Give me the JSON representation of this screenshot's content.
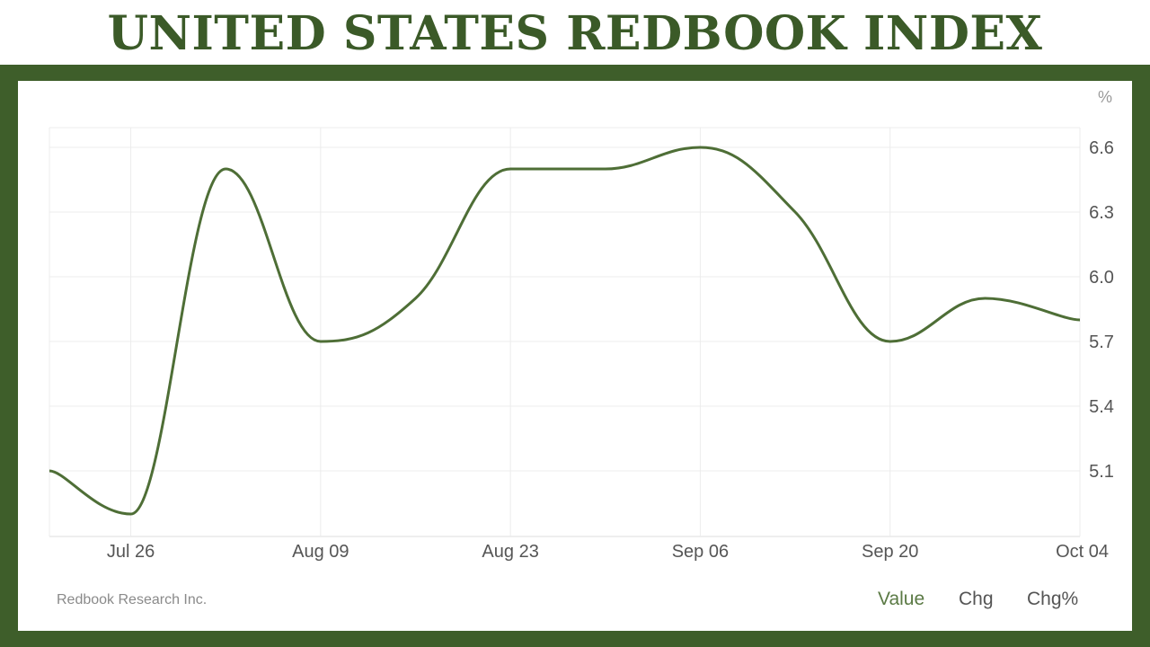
{
  "title": "UNITED STATES REDBOOK INDEX",
  "source": "Redbook Research Inc.",
  "tabs": {
    "value": "Value",
    "chg": "Chg",
    "chg_pct": "Chg%"
  },
  "colors": {
    "title": "#3b5a28",
    "frame": "#3e5e2a",
    "line": "#4e6e36",
    "active_tab": "#5b7a45"
  },
  "chart_data": {
    "type": "line",
    "unit": "%",
    "x_tick_labels": [
      "Jul 26",
      "Aug 09",
      "Aug 23",
      "Sep 06",
      "Sep 20",
      "Oct 04"
    ],
    "y_ticks": [
      5.1,
      5.4,
      5.7,
      6.0,
      6.3,
      6.6
    ],
    "y_tick_labels": [
      "5.1",
      "5.4",
      "5.7",
      "6.0",
      "6.3",
      "6.6"
    ],
    "ylim": [
      4.8,
      6.6
    ],
    "x_range": [
      "Jul 20",
      "Oct 04"
    ],
    "grid": true,
    "series": [
      {
        "x": [
          "Jul 20",
          "Jul 26",
          "Aug 02",
          "Aug 09",
          "Aug 16",
          "Aug 23",
          "Aug 30",
          "Sep 06",
          "Sep 13",
          "Sep 20",
          "Sep 27",
          "Oct 04"
        ],
        "values": [
          5.1,
          4.9,
          6.5,
          5.7,
          5.9,
          6.5,
          6.5,
          6.6,
          6.3,
          5.7,
          5.9,
          5.8
        ]
      }
    ]
  }
}
